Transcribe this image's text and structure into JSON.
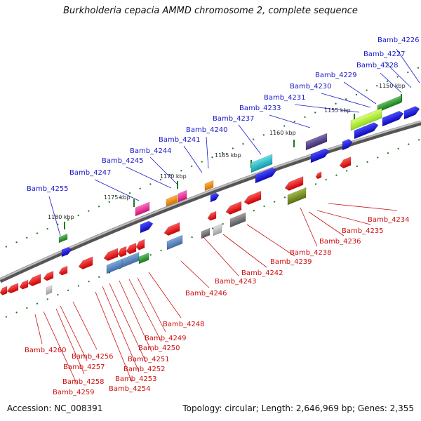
{
  "title": "Burkholderia cepacia AMMD chromosome 2, complete sequence",
  "accession_text": "Accession: NC_008391",
  "summary_text": "Topology: circular; Length: 2,646,969 bp; Genes: 2,355",
  "colors": {
    "backbone": "#8a8a8a",
    "forward_label": "#1a1acc",
    "reverse_label": "#cc1111",
    "ticks": "#1a7a1a",
    "forward_gene": "#1b1bdd",
    "reverse_gene": "#ee1111"
  },
  "scale_ticks": [
    {
      "label": "1180 kbp"
    },
    {
      "label": "1175 kbp"
    },
    {
      "label": "1170 kbp"
    },
    {
      "label": "1165 kbp"
    },
    {
      "label": "1160 kbp"
    },
    {
      "label": "1155 kbp"
    },
    {
      "label": "1150 kbp"
    }
  ],
  "forward_labels": [
    "Bamb_4226",
    "Bamb_4227",
    "Bamb_4228",
    "Bamb_4229",
    "Bamb_4230",
    "Bamb_4231",
    "Bamb_4233",
    "Bamb_4237",
    "Bamb_4240",
    "Bamb_4241",
    "Bamb_4244",
    "Bamb_4245",
    "Bamb_4247",
    "Bamb_4255"
  ],
  "reverse_labels": [
    "Bamb_4234",
    "Bamb_4235",
    "Bamb_4236",
    "Bamb_4238",
    "Bamb_4239",
    "Bamb_4242",
    "Bamb_4243",
    "Bamb_4246",
    "Bamb_4248",
    "Bamb_4249",
    "Bamb_4250",
    "Bamb_4251",
    "Bamb_4252",
    "Bamb_4253",
    "Bamb_4254",
    "Bamb_4256",
    "Bamb_4257",
    "Bamb_4258",
    "Bamb_4259",
    "Bamb_4260"
  ]
}
